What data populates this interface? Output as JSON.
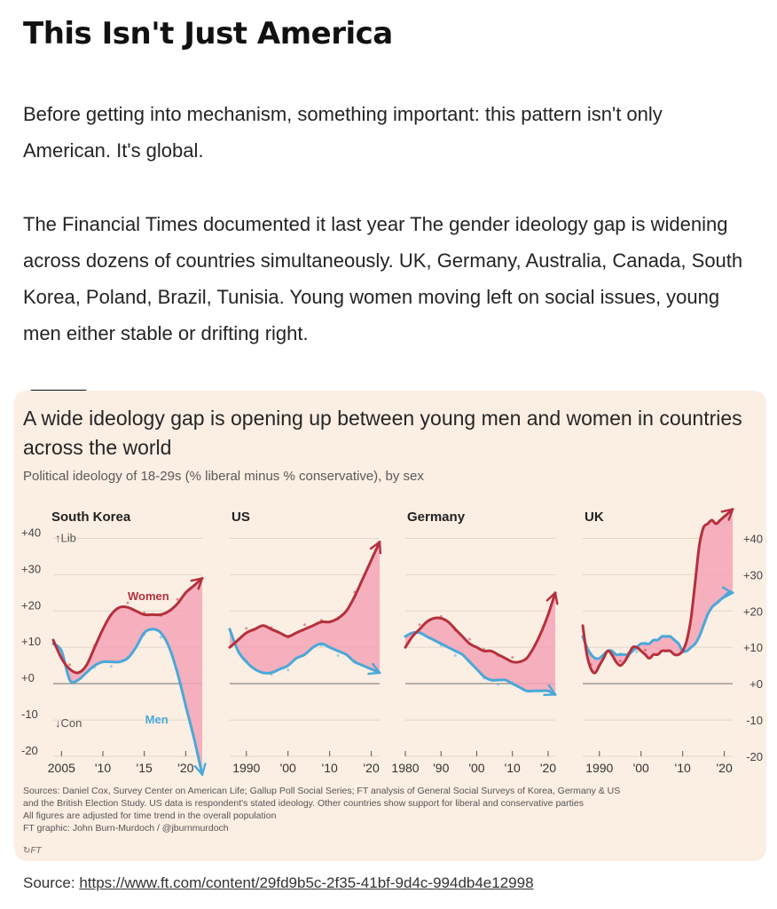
{
  "article": {
    "title": "This Isn't Just America",
    "paragraph1": "Before getting into mechanism, something important: this pattern isn't only American. It's global.",
    "paragraph2": "The Financial Times documented it last year The gender ideology gap is widening across dozens of countries simultaneously. UK, Germany, Australia, Canada, South Korea, Poland, Brazil, Tunisia. Young women moving left on social issues, young men either stable or drifting right."
  },
  "figure": {
    "title": "A wide ideology gap is opening up between young men and women in countries across the world",
    "subtitle": "Political ideology of 18-29s (% liberal minus % conservative), by sex",
    "notes": [
      "Sources: Daniel Cox, Survey Center on American Life; Gallup Poll Social Series; FT analysis of General Social Surveys of Korea, Germany & US",
      "and the British Election Study. US data is respondent's stated ideology. Other countries show support for liberal and conservative parties",
      "All figures are adjusted for time trend in the overall population",
      "FT graphic: John Burn-Murdoch / @jburnmurdoch"
    ],
    "logo_text": "FT"
  },
  "colors": {
    "women": "#b5303d",
    "men": "#4aa8d8",
    "gap_fill": "#f3a3b6",
    "background": "#fbeee2"
  },
  "source": {
    "label": "Source: ",
    "url": "https://www.ft.com/content/29fd9b5c-2f35-41bf-9d4c-994db4e12998"
  },
  "chart_data": [
    {
      "type": "line",
      "title": "South Korea",
      "ylim": [
        -20,
        45
      ],
      "yticks": [
        "+40",
        "+30",
        "+20",
        "+10",
        "+0",
        "-10",
        "-20"
      ],
      "lib_label": "↑Lib",
      "con_label": "↓Con",
      "x": [
        2004,
        2022
      ],
      "xticks": [
        {
          "v": 2005,
          "l": "2005"
        },
        {
          "v": 2010,
          "l": "'10"
        },
        {
          "v": 2015,
          "l": "'15"
        },
        {
          "v": 2020,
          "l": "'20"
        }
      ],
      "series": [
        {
          "name": "Women",
          "x": [
            2004,
            2005,
            2006,
            2007,
            2008,
            2009,
            2010,
            2011,
            2012,
            2013,
            2014,
            2015,
            2016,
            2017,
            2018,
            2019,
            2020,
            2021,
            2022
          ],
          "values": [
            12,
            7,
            4,
            3,
            5,
            10,
            15,
            19,
            21,
            21,
            20,
            19,
            19,
            19,
            20,
            22,
            25,
            27,
            29
          ]
        },
        {
          "name": "Men",
          "x": [
            2004,
            2005,
            2006,
            2007,
            2008,
            2009,
            2010,
            2011,
            2012,
            2013,
            2014,
            2015,
            2016,
            2017,
            2018,
            2019,
            2020,
            2021,
            2022
          ],
          "values": [
            11,
            9,
            1,
            1,
            3,
            5,
            6,
            6,
            6,
            7,
            10,
            14,
            15,
            14,
            10,
            3,
            -6,
            -15,
            -25
          ]
        }
      ],
      "annotations": [
        {
          "text": "Women",
          "series": "Women",
          "x": 2015.5,
          "y": 24
        },
        {
          "text": "Men",
          "series": "Men",
          "x": 2016.5,
          "y": -10
        }
      ]
    },
    {
      "type": "line",
      "title": "US",
      "ylim": [
        -20,
        45
      ],
      "x": [
        1986,
        2022
      ],
      "xticks": [
        {
          "v": 1990,
          "l": "1990"
        },
        {
          "v": 2000,
          "l": "'00"
        },
        {
          "v": 2010,
          "l": "'10"
        },
        {
          "v": 2020,
          "l": "'20"
        }
      ],
      "series": [
        {
          "name": "Women",
          "x": [
            1986,
            1988,
            1990,
            1992,
            1994,
            1996,
            1998,
            2000,
            2002,
            2004,
            2006,
            2008,
            2010,
            2012,
            2014,
            2016,
            2018,
            2020,
            2022
          ],
          "values": [
            10,
            12,
            14,
            15,
            16,
            15,
            14,
            13,
            14,
            15,
            16,
            17,
            17,
            18,
            20,
            24,
            29,
            34,
            39
          ]
        },
        {
          "name": "Men",
          "x": [
            1986,
            1988,
            1990,
            1992,
            1994,
            1996,
            1998,
            2000,
            2002,
            2004,
            2006,
            2008,
            2010,
            2012,
            2014,
            2016,
            2018,
            2020,
            2022
          ],
          "values": [
            15,
            9,
            6,
            4,
            3,
            3,
            4,
            5,
            7,
            8,
            10,
            11,
            10,
            9,
            8,
            6,
            5,
            4,
            3
          ]
        }
      ]
    },
    {
      "type": "line",
      "title": "Germany",
      "ylim": [
        -20,
        45
      ],
      "x": [
        1980,
        2022
      ],
      "xticks": [
        {
          "v": 1980,
          "l": "1980"
        },
        {
          "v": 1990,
          "l": "'90"
        },
        {
          "v": 2000,
          "l": "'00"
        },
        {
          "v": 2010,
          "l": "'10"
        },
        {
          "v": 2020,
          "l": "'20"
        }
      ],
      "series": [
        {
          "name": "Women",
          "x": [
            1980,
            1982,
            1984,
            1986,
            1988,
            1990,
            1992,
            1994,
            1996,
            1998,
            2000,
            2002,
            2004,
            2006,
            2008,
            2010,
            2012,
            2014,
            2016,
            2018,
            2020,
            2022
          ],
          "values": [
            10,
            13,
            15,
            17,
            18,
            18,
            17,
            15,
            13,
            11,
            10,
            9,
            9,
            8,
            7,
            6,
            6,
            7,
            10,
            14,
            19,
            25
          ]
        },
        {
          "name": "Men",
          "x": [
            1980,
            1982,
            1984,
            1986,
            1988,
            1990,
            1992,
            1994,
            1996,
            1998,
            2000,
            2002,
            2004,
            2006,
            2008,
            2010,
            2012,
            2014,
            2016,
            2018,
            2020,
            2022
          ],
          "values": [
            13,
            14,
            14,
            13,
            12,
            11,
            10,
            9,
            8,
            6,
            4,
            2,
            1,
            1,
            1,
            0,
            -1,
            -2,
            -2,
            -2,
            -2,
            -3
          ]
        }
      ]
    },
    {
      "type": "line",
      "title": "UK",
      "ylim": [
        -20,
        45
      ],
      "x": [
        1986,
        2022
      ],
      "xticks": [
        {
          "v": 1990,
          "l": "1990"
        },
        {
          "v": 2000,
          "l": "'00"
        },
        {
          "v": 2010,
          "l": "'10"
        },
        {
          "v": 2020,
          "l": "'20"
        }
      ],
      "series": [
        {
          "name": "Women",
          "x": [
            1986,
            1987,
            1988,
            1989,
            1990,
            1991,
            1992,
            1993,
            1994,
            1995,
            1996,
            1997,
            1998,
            1999,
            2000,
            2001,
            2002,
            2003,
            2004,
            2005,
            2006,
            2007,
            2008,
            2009,
            2010,
            2011,
            2012,
            2013,
            2014,
            2015,
            2016,
            2017,
            2018,
            2019,
            2020,
            2021,
            2022
          ],
          "values": [
            16,
            8,
            4,
            3,
            5,
            7,
            9,
            8,
            6,
            5,
            6,
            8,
            10,
            10,
            9,
            8,
            7,
            8,
            8,
            9,
            9,
            9,
            8,
            8,
            9,
            12,
            18,
            28,
            38,
            43,
            44,
            45,
            44,
            45,
            46,
            47,
            48
          ]
        },
        {
          "name": "Men",
          "x": [
            1986,
            1987,
            1988,
            1989,
            1990,
            1991,
            1992,
            1993,
            1994,
            1995,
            1996,
            1997,
            1998,
            1999,
            2000,
            2001,
            2002,
            2003,
            2004,
            2005,
            2006,
            2007,
            2008,
            2009,
            2010,
            2011,
            2012,
            2013,
            2014,
            2015,
            2016,
            2017,
            2018,
            2019,
            2020,
            2021,
            2022
          ],
          "values": [
            13,
            10,
            8,
            7,
            7,
            8,
            9,
            9,
            8,
            8,
            8,
            8,
            9,
            10,
            11,
            11,
            11,
            12,
            12,
            13,
            13,
            13,
            12,
            11,
            9,
            9,
            10,
            11,
            13,
            16,
            19,
            21,
            22,
            23,
            24,
            25,
            25
          ]
        }
      ]
    }
  ]
}
